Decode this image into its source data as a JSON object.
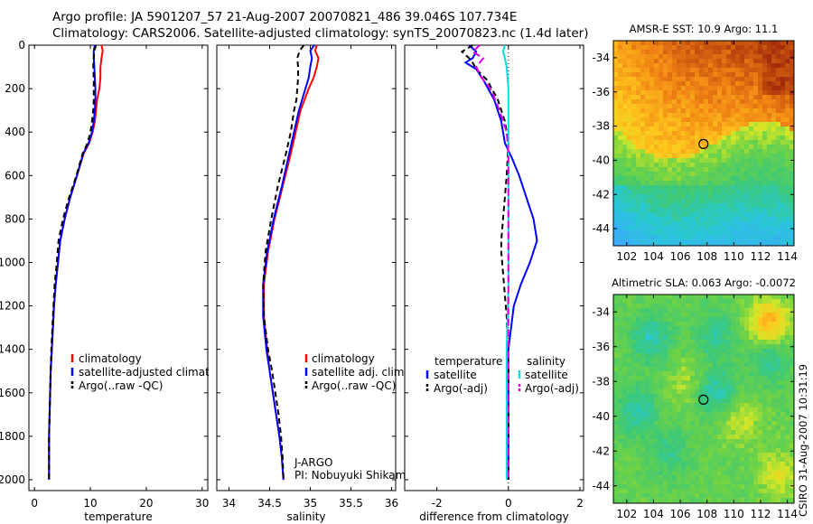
{
  "header": {
    "line1": "Argo profile: JA 5901207_57 21-Aug-2007 20070821_486 39.046S 107.734E",
    "line2": "Climatology: CARS2006. Satellite-adjusted climatology: synTS_20070823.nc (1.4d later)"
  },
  "side_label": "CSIRO 31-Aug-2007 10:31:19",
  "chart_data": [
    {
      "type": "line",
      "panel": "temperature",
      "xlabel": "temperature",
      "ylabel": "",
      "xlim": [
        -1,
        31
      ],
      "ylim": [
        2050,
        0
      ],
      "xticks": [
        0,
        10,
        20,
        30
      ],
      "yticks": [
        0,
        200,
        400,
        600,
        800,
        1000,
        1200,
        1400,
        1600,
        1800,
        2000
      ],
      "legend": [
        "climatology",
        "satellite-adjusted climatology",
        "Argo(..raw -QC)"
      ],
      "series": [
        {
          "name": "climatology",
          "color": "#ff0000",
          "dash": "",
          "x": [
            12.0,
            12.2,
            12.0,
            11.8,
            11.8,
            11.6,
            11.2,
            11.0,
            10.8,
            10.4,
            9.8,
            8.8,
            7.6,
            6.4,
            5.4,
            4.6,
            4.2,
            3.8,
            3.5,
            3.3,
            3.1,
            2.9,
            2.8,
            2.7,
            2.6,
            2.6
          ],
          "y": [
            0,
            25,
            60,
            100,
            150,
            200,
            250,
            300,
            350,
            400,
            450,
            500,
            600,
            700,
            800,
            900,
            1000,
            1100,
            1200,
            1300,
            1400,
            1500,
            1600,
            1700,
            1800,
            2000
          ]
        },
        {
          "name": "satellite-adjusted climatology",
          "color": "#0000ff",
          "dash": "",
          "x": [
            10.8,
            10.6,
            10.6,
            10.7,
            10.8,
            10.9,
            10.9,
            10.8,
            10.6,
            10.3,
            9.7,
            8.7,
            7.6,
            6.4,
            5.4,
            4.6,
            4.2,
            3.8,
            3.5,
            3.3,
            3.1,
            2.9,
            2.8,
            2.7,
            2.6,
            2.6
          ],
          "y": [
            0,
            25,
            60,
            100,
            150,
            200,
            250,
            300,
            350,
            400,
            450,
            500,
            600,
            700,
            800,
            900,
            1000,
            1100,
            1200,
            1300,
            1400,
            1500,
            1600,
            1700,
            1800,
            2000
          ]
        },
        {
          "name": "Argo(..raw -QC)",
          "color": "#000000",
          "dash": "6,4",
          "x": [
            11.0,
            10.7,
            10.6,
            10.5,
            10.6,
            10.6,
            10.6,
            10.5,
            10.3,
            10.0,
            9.5,
            8.6,
            7.5,
            6.2,
            5.1,
            4.3,
            4.0,
            3.6,
            3.4,
            3.2,
            3.0,
            2.9,
            2.8,
            2.7,
            2.6,
            2.6
          ],
          "y": [
            0,
            25,
            60,
            100,
            150,
            200,
            250,
            300,
            350,
            400,
            450,
            500,
            600,
            700,
            800,
            900,
            1000,
            1100,
            1200,
            1300,
            1400,
            1500,
            1600,
            1700,
            1800,
            2000
          ]
        }
      ]
    },
    {
      "type": "line",
      "panel": "salinity",
      "xlabel": "salinity",
      "ylabel": "",
      "xlim": [
        33.85,
        36.05
      ],
      "ylim": [
        2050,
        0
      ],
      "xticks": [
        34,
        34.5,
        35,
        35.5,
        36
      ],
      "legend": [
        "climatology",
        "satellite adj. clim.",
        "Argo(..raw -QC)"
      ],
      "annotation": [
        "J-ARGO",
        "PI: Nobuyuki Shikama"
      ],
      "series": [
        {
          "name": "climatology",
          "color": "#ff0000",
          "dash": "",
          "x": [
            35.08,
            35.06,
            35.1,
            35.08,
            35.04,
            34.98,
            34.93,
            34.88,
            34.82,
            34.76,
            34.66,
            34.56,
            34.48,
            34.43,
            34.43,
            34.47,
            34.5,
            34.54,
            34.58,
            34.62,
            34.65,
            34.67
          ],
          "y": [
            0,
            25,
            60,
            100,
            150,
            200,
            250,
            300,
            400,
            500,
            650,
            800,
            950,
            1100,
            1250,
            1400,
            1500,
            1600,
            1700,
            1800,
            1900,
            2000
          ]
        },
        {
          "name": "satellite adj. clim.",
          "color": "#0000ff",
          "dash": "",
          "x": [
            35.05,
            35.0,
            35.02,
            35.0,
            34.98,
            34.94,
            34.9,
            34.86,
            34.8,
            34.74,
            34.65,
            34.55,
            34.47,
            34.42,
            34.42,
            34.46,
            34.5,
            34.54,
            34.58,
            34.62,
            34.65,
            34.67
          ],
          "y": [
            0,
            25,
            60,
            100,
            150,
            200,
            250,
            300,
            400,
            500,
            650,
            800,
            950,
            1100,
            1250,
            1400,
            1500,
            1600,
            1700,
            1800,
            1900,
            2000
          ]
        },
        {
          "name": "Argo(..raw -QC)",
          "color": "#000000",
          "dash": "6,4",
          "x": [
            34.92,
            34.87,
            34.84,
            34.85,
            34.85,
            34.84,
            34.83,
            34.8,
            34.76,
            34.7,
            34.6,
            34.52,
            34.45,
            34.42,
            34.43,
            34.48,
            34.53,
            34.57,
            34.61,
            34.64,
            34.66,
            34.67
          ],
          "y": [
            0,
            25,
            60,
            100,
            150,
            200,
            250,
            300,
            400,
            500,
            650,
            800,
            950,
            1100,
            1250,
            1400,
            1500,
            1600,
            1700,
            1800,
            1900,
            2000
          ]
        }
      ]
    },
    {
      "type": "line",
      "panel": "difference",
      "xlabel": "difference from climatology",
      "ylabel": "",
      "xlim": [
        -2.9,
        2.1
      ],
      "ylim": [
        2050,
        0
      ],
      "xticks": [
        -2,
        0,
        2
      ],
      "legend": [
        "temperature",
        "satellite",
        "Argo(-adj)",
        "salinity",
        "satellite",
        "Argo(-adj)"
      ],
      "series": [
        {
          "name": "satellite",
          "group": "temperature",
          "color": "#0000ff",
          "dash": "",
          "x": [
            -1.1,
            -0.9,
            -1.0,
            -1.2,
            -0.9,
            -0.7,
            -0.4,
            -0.2,
            -0.1,
            0.1,
            0.3,
            0.5,
            0.7,
            0.8,
            0.6,
            0.35,
            0.15,
            0.0,
            0.0,
            0.0
          ],
          "y": [
            0,
            30,
            60,
            80,
            110,
            160,
            250,
            350,
            450,
            520,
            600,
            700,
            800,
            900,
            1000,
            1100,
            1200,
            1400,
            1600,
            2000
          ]
        },
        {
          "name": "Argo(-adj)",
          "group": "temperature",
          "color": "#000000",
          "dash": "6,4",
          "x": [
            -1.0,
            -1.3,
            -1.1,
            -1.0,
            -0.9,
            -0.6,
            -0.3,
            -0.1,
            0.0,
            -0.05,
            -0.1,
            -0.15,
            -0.2,
            -0.2,
            -0.15,
            -0.1,
            -0.05,
            0.0,
            0.0
          ],
          "y": [
            0,
            30,
            60,
            80,
            110,
            160,
            250,
            350,
            450,
            600,
            700,
            800,
            900,
            950,
            1050,
            1150,
            1250,
            1500,
            2000
          ]
        },
        {
          "name": "satellite",
          "group": "salinity",
          "color": "#00e0e0",
          "dash": "",
          "x": [
            -0.1,
            -0.15,
            -0.1,
            -0.05,
            0.0,
            0.0,
            0.0,
            0.0,
            0.0,
            0.0,
            0.0,
            -0.05,
            -0.05,
            -0.05
          ],
          "y": [
            0,
            30,
            60,
            100,
            200,
            300,
            400,
            500,
            700,
            900,
            1100,
            1400,
            1700,
            2000
          ]
        },
        {
          "name": "Argo(-adj)",
          "group": "salinity",
          "color": "#e000e0",
          "dash": "8,4",
          "x": [
            -0.8,
            -1.0,
            -0.7,
            -0.9,
            -0.75,
            -0.5,
            -0.25,
            -0.05,
            0.0,
            0.0,
            0.0,
            0.0,
            0.0,
            0.0
          ],
          "y": [
            0,
            30,
            60,
            100,
            150,
            200,
            300,
            400,
            500,
            700,
            1000,
            1300,
            1600,
            2000
          ]
        }
      ]
    },
    {
      "type": "heatmap",
      "panel": "sst-map",
      "title": "AMSR-E SST: 10.9 Argo: 11.1",
      "xlim": [
        101,
        114.5
      ],
      "ylim": [
        -45,
        -33
      ],
      "xticks": [
        102,
        104,
        106,
        108,
        110,
        112,
        114
      ],
      "yticks": [
        -34,
        -36,
        -38,
        -40,
        -42,
        -44
      ],
      "marker": {
        "lon": 107.734,
        "lat": -39.046
      }
    },
    {
      "type": "heatmap",
      "panel": "sla-map",
      "title": "Altimetric SLA: 0.063 Argo: -0.0072",
      "xlim": [
        101,
        114.5
      ],
      "ylim": [
        -45,
        -33
      ],
      "xticks": [
        102,
        104,
        106,
        108,
        110,
        112,
        114
      ],
      "yticks": [
        -34,
        -36,
        -38,
        -40,
        -42,
        -44
      ],
      "marker": {
        "lon": 107.734,
        "lat": -39.046
      }
    }
  ]
}
